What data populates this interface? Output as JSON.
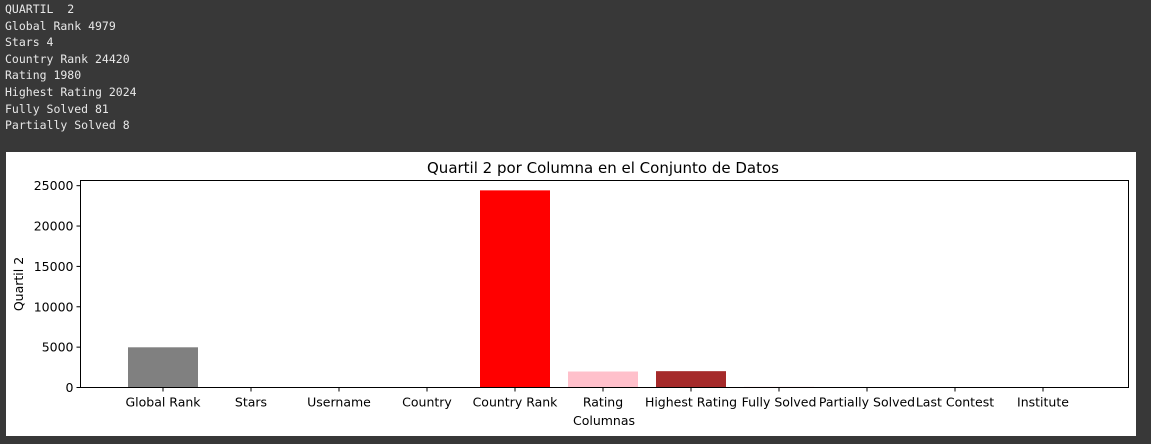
{
  "output": {
    "lines": [
      "QUARTIL  2",
      "Global Rank 4979",
      "Stars 4",
      "Country Rank 24420",
      "Rating 1980",
      "Highest Rating 2024",
      "Fully Solved 81",
      "Partially Solved 8"
    ]
  },
  "chart_data": {
    "type": "bar",
    "title": "Quartil 2 por Columna en el Conjunto de Datos",
    "xlabel": "Columnas",
    "ylabel": "Quartil 2",
    "categories": [
      "Global Rank",
      "Stars",
      "Username",
      "Country",
      "Country Rank",
      "Rating",
      "Highest Rating",
      "Fully Solved",
      "Partially Solved",
      "Last Contest",
      "Institute"
    ],
    "values": [
      4979,
      4,
      0,
      0,
      24420,
      1980,
      2024,
      81,
      8,
      0,
      0
    ],
    "colors": [
      "#808080",
      "#ff7f50",
      "#ffffff",
      "#ffffff",
      "#ff0000",
      "#ffc0cb",
      "#a52a2a",
      "#ffc0cb",
      "#808080",
      "#ffffff",
      "#ffffff"
    ],
    "yticks": [
      0,
      5000,
      10000,
      15000,
      20000,
      25000
    ],
    "ylim": [
      0,
      25641
    ],
    "grid": false,
    "legend": "none"
  }
}
